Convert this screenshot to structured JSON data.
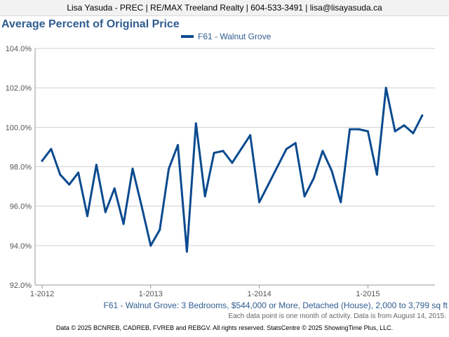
{
  "header": {
    "text": "Lisa Yasuda - PREC | RE/MAX Treeland Realty | 604-533-3491 | lisa@lisayasuda.ca"
  },
  "title": "Average Percent of Original Price",
  "caption": "F61 - Walnut Grove: 3 Bedrooms, $544,000 or More, Detached (House), 2,000 to 3,799 sq ft",
  "note": "Each data point is one month of activity. Data is from August 14, 2015.",
  "footer": "Data © 2025 BCNREB, CADREB, FVREB and REBGV. All rights reserved. StatsCentre © 2025 ShowingTime Plus, LLC.",
  "chart_data": {
    "type": "line",
    "title": "Average Percent of Original Price",
    "xlabel": "",
    "ylabel": "",
    "ylim": [
      92,
      104
    ],
    "yticks": [
      "92.0%",
      "94.0%",
      "96.0%",
      "98.0%",
      "100.0%",
      "102.0%",
      "104.0%"
    ],
    "xticks": [
      "1-2012",
      "1-2013",
      "1-2014",
      "1-2015"
    ],
    "legend": "top-center",
    "grid": true,
    "color": "#0b4a8f",
    "series": [
      {
        "name": "F61 - Walnut Grove",
        "x": [
          "2012-01",
          "2012-02",
          "2012-03",
          "2012-04",
          "2012-05",
          "2012-06",
          "2012-07",
          "2012-08",
          "2012-09",
          "2012-10",
          "2012-11",
          "2012-12",
          "2013-01",
          "2013-02",
          "2013-03",
          "2013-04",
          "2013-05",
          "2013-06",
          "2013-07",
          "2013-08",
          "2013-09",
          "2013-10",
          "2013-11",
          "2013-12",
          "2014-01",
          "2014-02",
          "2014-03",
          "2014-04",
          "2014-05",
          "2014-06",
          "2014-07",
          "2014-08",
          "2014-09",
          "2014-10",
          "2014-11",
          "2014-12",
          "2015-01",
          "2015-02",
          "2015-03",
          "2015-04",
          "2015-05",
          "2015-06",
          "2015-07"
        ],
        "values": [
          98.3,
          98.9,
          97.6,
          97.1,
          97.7,
          95.5,
          98.1,
          95.7,
          96.9,
          95.1,
          97.9,
          96.0,
          94.0,
          94.8,
          97.9,
          99.1,
          93.7,
          100.2,
          96.5,
          98.7,
          98.8,
          98.2,
          98.9,
          99.6,
          96.2,
          97.1,
          98.0,
          98.9,
          99.2,
          96.5,
          97.4,
          98.8,
          97.8,
          96.2,
          99.9,
          99.9,
          99.8,
          97.6,
          102.0,
          99.8,
          100.1,
          99.7,
          100.6
        ]
      }
    ]
  }
}
